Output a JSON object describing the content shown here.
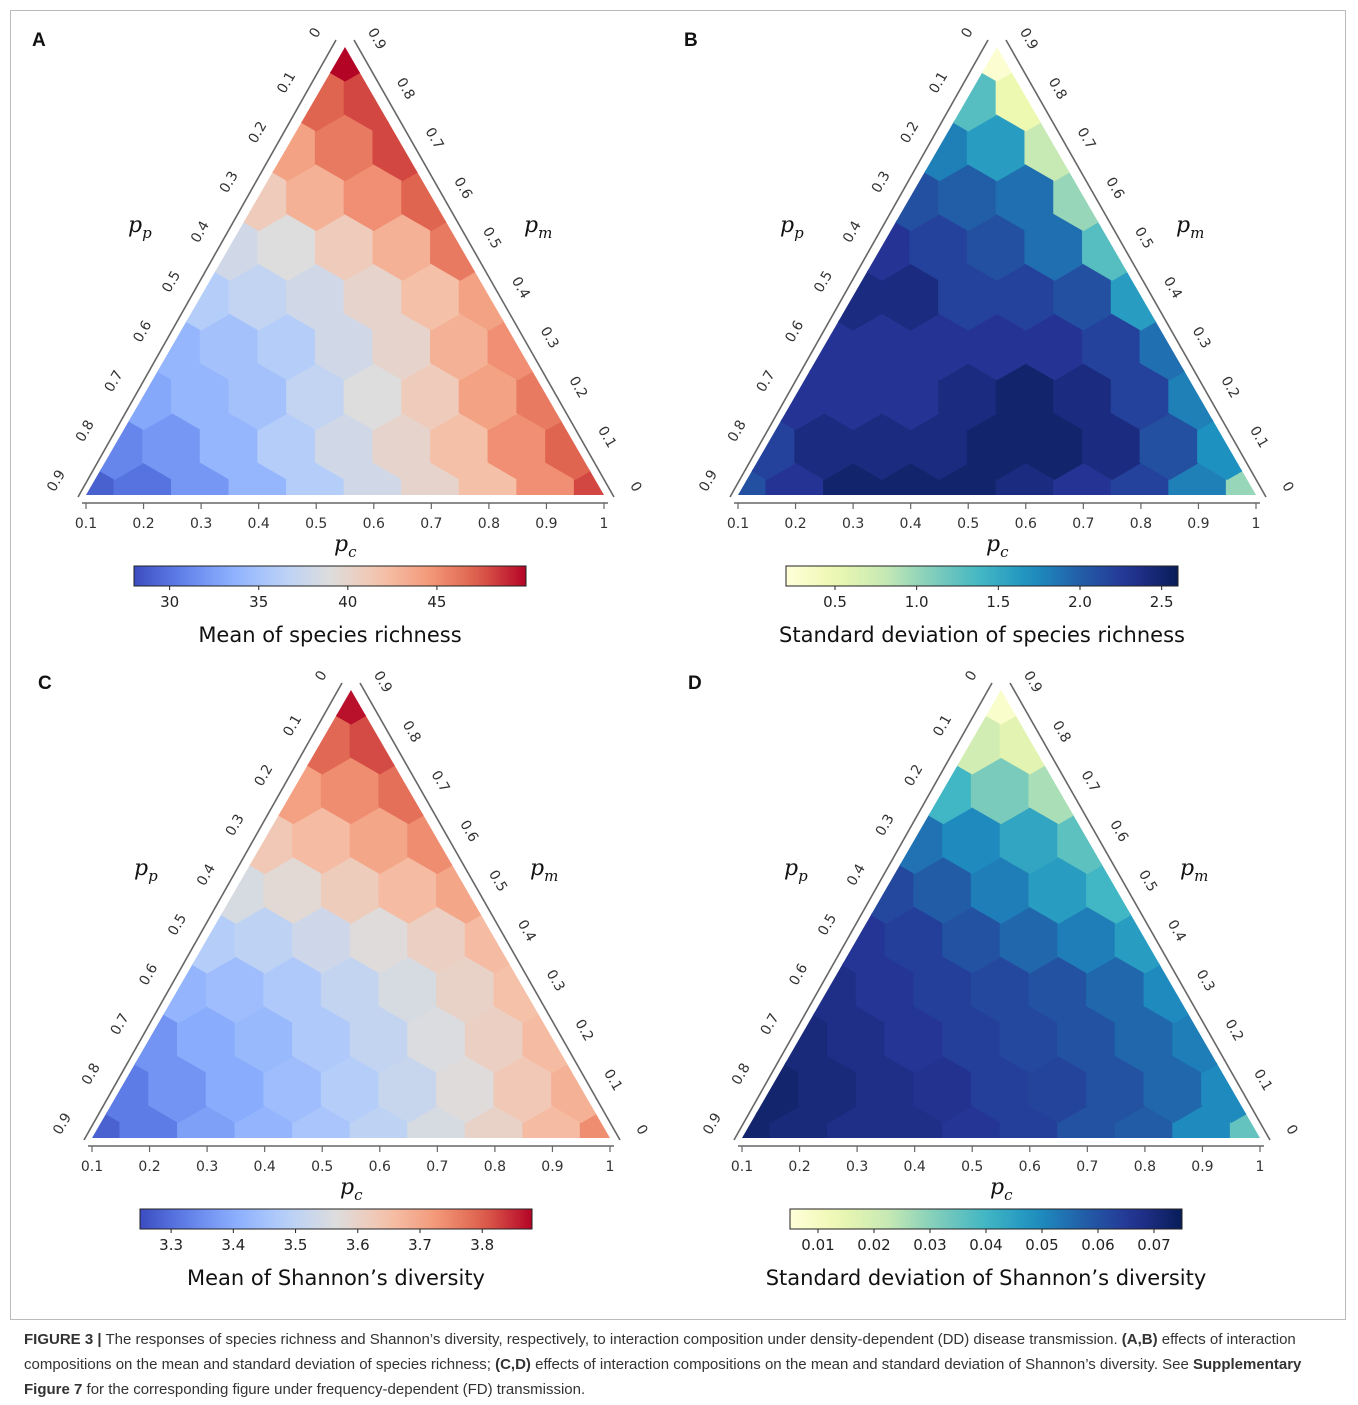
{
  "figure": {
    "caption": {
      "label": "FIGURE 3 |",
      "text1": " The responses of species richness and Shannon’s diversity, respectively, to interaction composition under density-dependent (DD) disease transmission. ",
      "bold1": "(A,B)",
      "text2": " effects of interaction compositions on the mean and standard deviation of species richness; ",
      "bold2": "(C,D)",
      "text3": " effects of interaction compositions on the mean and standard deviation of Shannon’s diversity. See ",
      "bold3": "Supplementary Figure 7",
      "text4": " for the corresponding figure under frequency-dependent (FD) transmission."
    }
  },
  "chart_data": [
    {
      "panel": "A",
      "type": "heatmap",
      "subtype": "ternary-hexbin",
      "axes": {
        "bottom": {
          "label": "p_c",
          "ticks": [
            "0.1",
            "0.2",
            "0.3",
            "0.4",
            "0.5",
            "0.6",
            "0.7",
            "0.8",
            "0.9",
            "1"
          ]
        },
        "left": {
          "label": "p_p",
          "ticks": [
            "0",
            "0.1",
            "0.2",
            "0.3",
            "0.4",
            "0.5",
            "0.6",
            "0.7",
            "0.8",
            "0.9"
          ]
        },
        "right": {
          "label": "p_m",
          "ticks": [
            "0.9",
            "0.8",
            "0.7",
            "0.6",
            "0.5",
            "0.4",
            "0.3",
            "0.2",
            "0.1",
            "0"
          ]
        }
      },
      "colorbar": {
        "label": "Mean of species richness",
        "colormap": "coolwarm",
        "range": [
          28,
          50
        ],
        "ticks": [
          "30",
          "35",
          "40",
          "45"
        ]
      },
      "values": [
        [
          29,
          30,
          32,
          34,
          36,
          38,
          40,
          42,
          45,
          48
        ],
        [
          31,
          32,
          34,
          36,
          38,
          40,
          42,
          45,
          47
        ],
        [
          33,
          34,
          35,
          37,
          39,
          41,
          44,
          46
        ],
        [
          34,
          35,
          36,
          38,
          40,
          43,
          45
        ],
        [
          36,
          37,
          38,
          40,
          42,
          44
        ],
        [
          38,
          39,
          41,
          43,
          46
        ],
        [
          41,
          43,
          45,
          47
        ],
        [
          44,
          46,
          48
        ],
        [
          47,
          48
        ],
        [
          50
        ]
      ]
    },
    {
      "panel": "B",
      "type": "heatmap",
      "subtype": "ternary-hexbin",
      "axes": {
        "bottom": {
          "label": "p_c",
          "ticks": [
            "0.1",
            "0.2",
            "0.3",
            "0.4",
            "0.5",
            "0.6",
            "0.7",
            "0.8",
            "0.9",
            "1"
          ]
        },
        "left": {
          "label": "p_p",
          "ticks": [
            "0",
            "0.1",
            "0.2",
            "0.3",
            "0.4",
            "0.5",
            "0.6",
            "0.7",
            "0.8",
            "0.9"
          ]
        },
        "right": {
          "label": "p_m",
          "ticks": [
            "0.9",
            "0.8",
            "0.7",
            "0.6",
            "0.5",
            "0.4",
            "0.3",
            "0.2",
            "0.1",
            "0"
          ]
        }
      },
      "colorbar": {
        "label": "Standard deviation of species richness",
        "colormap": "YlGnBu",
        "range": [
          0.2,
          2.6
        ],
        "ticks": [
          "0.5",
          "1.0",
          "1.5",
          "2.0",
          "2.5"
        ]
      },
      "values": [
        [
          2.1,
          2.3,
          2.5,
          2.5,
          2.5,
          2.4,
          2.3,
          2.2,
          1.8,
          1.0
        ],
        [
          2.2,
          2.4,
          2.4,
          2.4,
          2.5,
          2.5,
          2.4,
          2.1,
          1.7
        ],
        [
          2.3,
          2.3,
          2.3,
          2.4,
          2.5,
          2.4,
          2.2,
          1.8
        ],
        [
          2.3,
          2.3,
          2.3,
          2.3,
          2.3,
          2.2,
          1.9
        ],
        [
          2.4,
          2.4,
          2.2,
          2.2,
          2.1,
          1.6
        ],
        [
          2.3,
          2.2,
          2.1,
          1.9,
          1.3
        ],
        [
          2.1,
          2.0,
          1.9,
          1.0
        ],
        [
          1.8,
          1.6,
          0.8
        ],
        [
          1.3,
          0.5
        ],
        [
          0.25
        ]
      ]
    },
    {
      "panel": "C",
      "type": "heatmap",
      "subtype": "ternary-hexbin",
      "axes": {
        "bottom": {
          "label": "p_c",
          "ticks": [
            "0.1",
            "0.2",
            "0.3",
            "0.4",
            "0.5",
            "0.6",
            "0.7",
            "0.8",
            "0.9",
            "1"
          ]
        },
        "left": {
          "label": "p_p",
          "ticks": [
            "0",
            "0.1",
            "0.2",
            "0.3",
            "0.4",
            "0.5",
            "0.6",
            "0.7",
            "0.8",
            "0.9"
          ]
        },
        "right": {
          "label": "p_m",
          "ticks": [
            "0.9",
            "0.8",
            "0.7",
            "0.6",
            "0.5",
            "0.4",
            "0.3",
            "0.2",
            "0.1",
            "0"
          ]
        }
      },
      "colorbar": {
        "label": "Mean of Shannon’s diversity",
        "colormap": "coolwarm",
        "range": [
          3.25,
          3.88
        ],
        "ticks": [
          "3.3",
          "3.4",
          "3.5",
          "3.6",
          "3.7",
          "3.8"
        ]
      },
      "values": [
        [
          3.28,
          3.32,
          3.38,
          3.42,
          3.46,
          3.5,
          3.55,
          3.6,
          3.66,
          3.74
        ],
        [
          3.32,
          3.36,
          3.4,
          3.44,
          3.48,
          3.52,
          3.57,
          3.63,
          3.68
        ],
        [
          3.36,
          3.4,
          3.43,
          3.47,
          3.51,
          3.56,
          3.61,
          3.66
        ],
        [
          3.42,
          3.44,
          3.47,
          3.51,
          3.55,
          3.6,
          3.65
        ],
        [
          3.48,
          3.5,
          3.53,
          3.57,
          3.61,
          3.66
        ],
        [
          3.55,
          3.58,
          3.62,
          3.66,
          3.7
        ],
        [
          3.63,
          3.66,
          3.7,
          3.74
        ],
        [
          3.71,
          3.74,
          3.78
        ],
        [
          3.79,
          3.82
        ],
        [
          3.87
        ]
      ]
    },
    {
      "panel": "D",
      "type": "heatmap",
      "subtype": "ternary-hexbin",
      "axes": {
        "bottom": {
          "label": "p_c",
          "ticks": [
            "0.1",
            "0.2",
            "0.3",
            "0.4",
            "0.5",
            "0.6",
            "0.7",
            "0.8",
            "0.9",
            "1"
          ]
        },
        "left": {
          "label": "p_p",
          "ticks": [
            "0",
            "0.1",
            "0.2",
            "0.3",
            "0.4",
            "0.5",
            "0.6",
            "0.7",
            "0.8",
            "0.9"
          ]
        },
        "right": {
          "label": "p_m",
          "ticks": [
            "0.9",
            "0.8",
            "0.7",
            "0.6",
            "0.5",
            "0.4",
            "0.3",
            "0.2",
            "0.1",
            "0"
          ]
        }
      },
      "colorbar": {
        "label": "Standard deviation of Shannon’s diversity",
        "colormap": "YlGnBu",
        "range": [
          0.005,
          0.075
        ],
        "ticks": [
          "0.01",
          "0.02",
          "0.03",
          "0.04",
          "0.05",
          "0.06",
          "0.07"
        ]
      },
      "values": [
        [
          0.072,
          0.07,
          0.068,
          0.068,
          0.066,
          0.064,
          0.06,
          0.058,
          0.05,
          0.035
        ],
        [
          0.072,
          0.07,
          0.068,
          0.067,
          0.064,
          0.063,
          0.06,
          0.056,
          0.05
        ],
        [
          0.07,
          0.068,
          0.066,
          0.064,
          0.062,
          0.06,
          0.056,
          0.052
        ],
        [
          0.068,
          0.066,
          0.064,
          0.062,
          0.06,
          0.056,
          0.05
        ],
        [
          0.066,
          0.064,
          0.06,
          0.056,
          0.052,
          0.046
        ],
        [
          0.062,
          0.058,
          0.052,
          0.046,
          0.04
        ],
        [
          0.054,
          0.05,
          0.044,
          0.036
        ],
        [
          0.04,
          0.032,
          0.026
        ],
        [
          0.02,
          0.016
        ],
        [
          0.008
        ]
      ]
    }
  ]
}
